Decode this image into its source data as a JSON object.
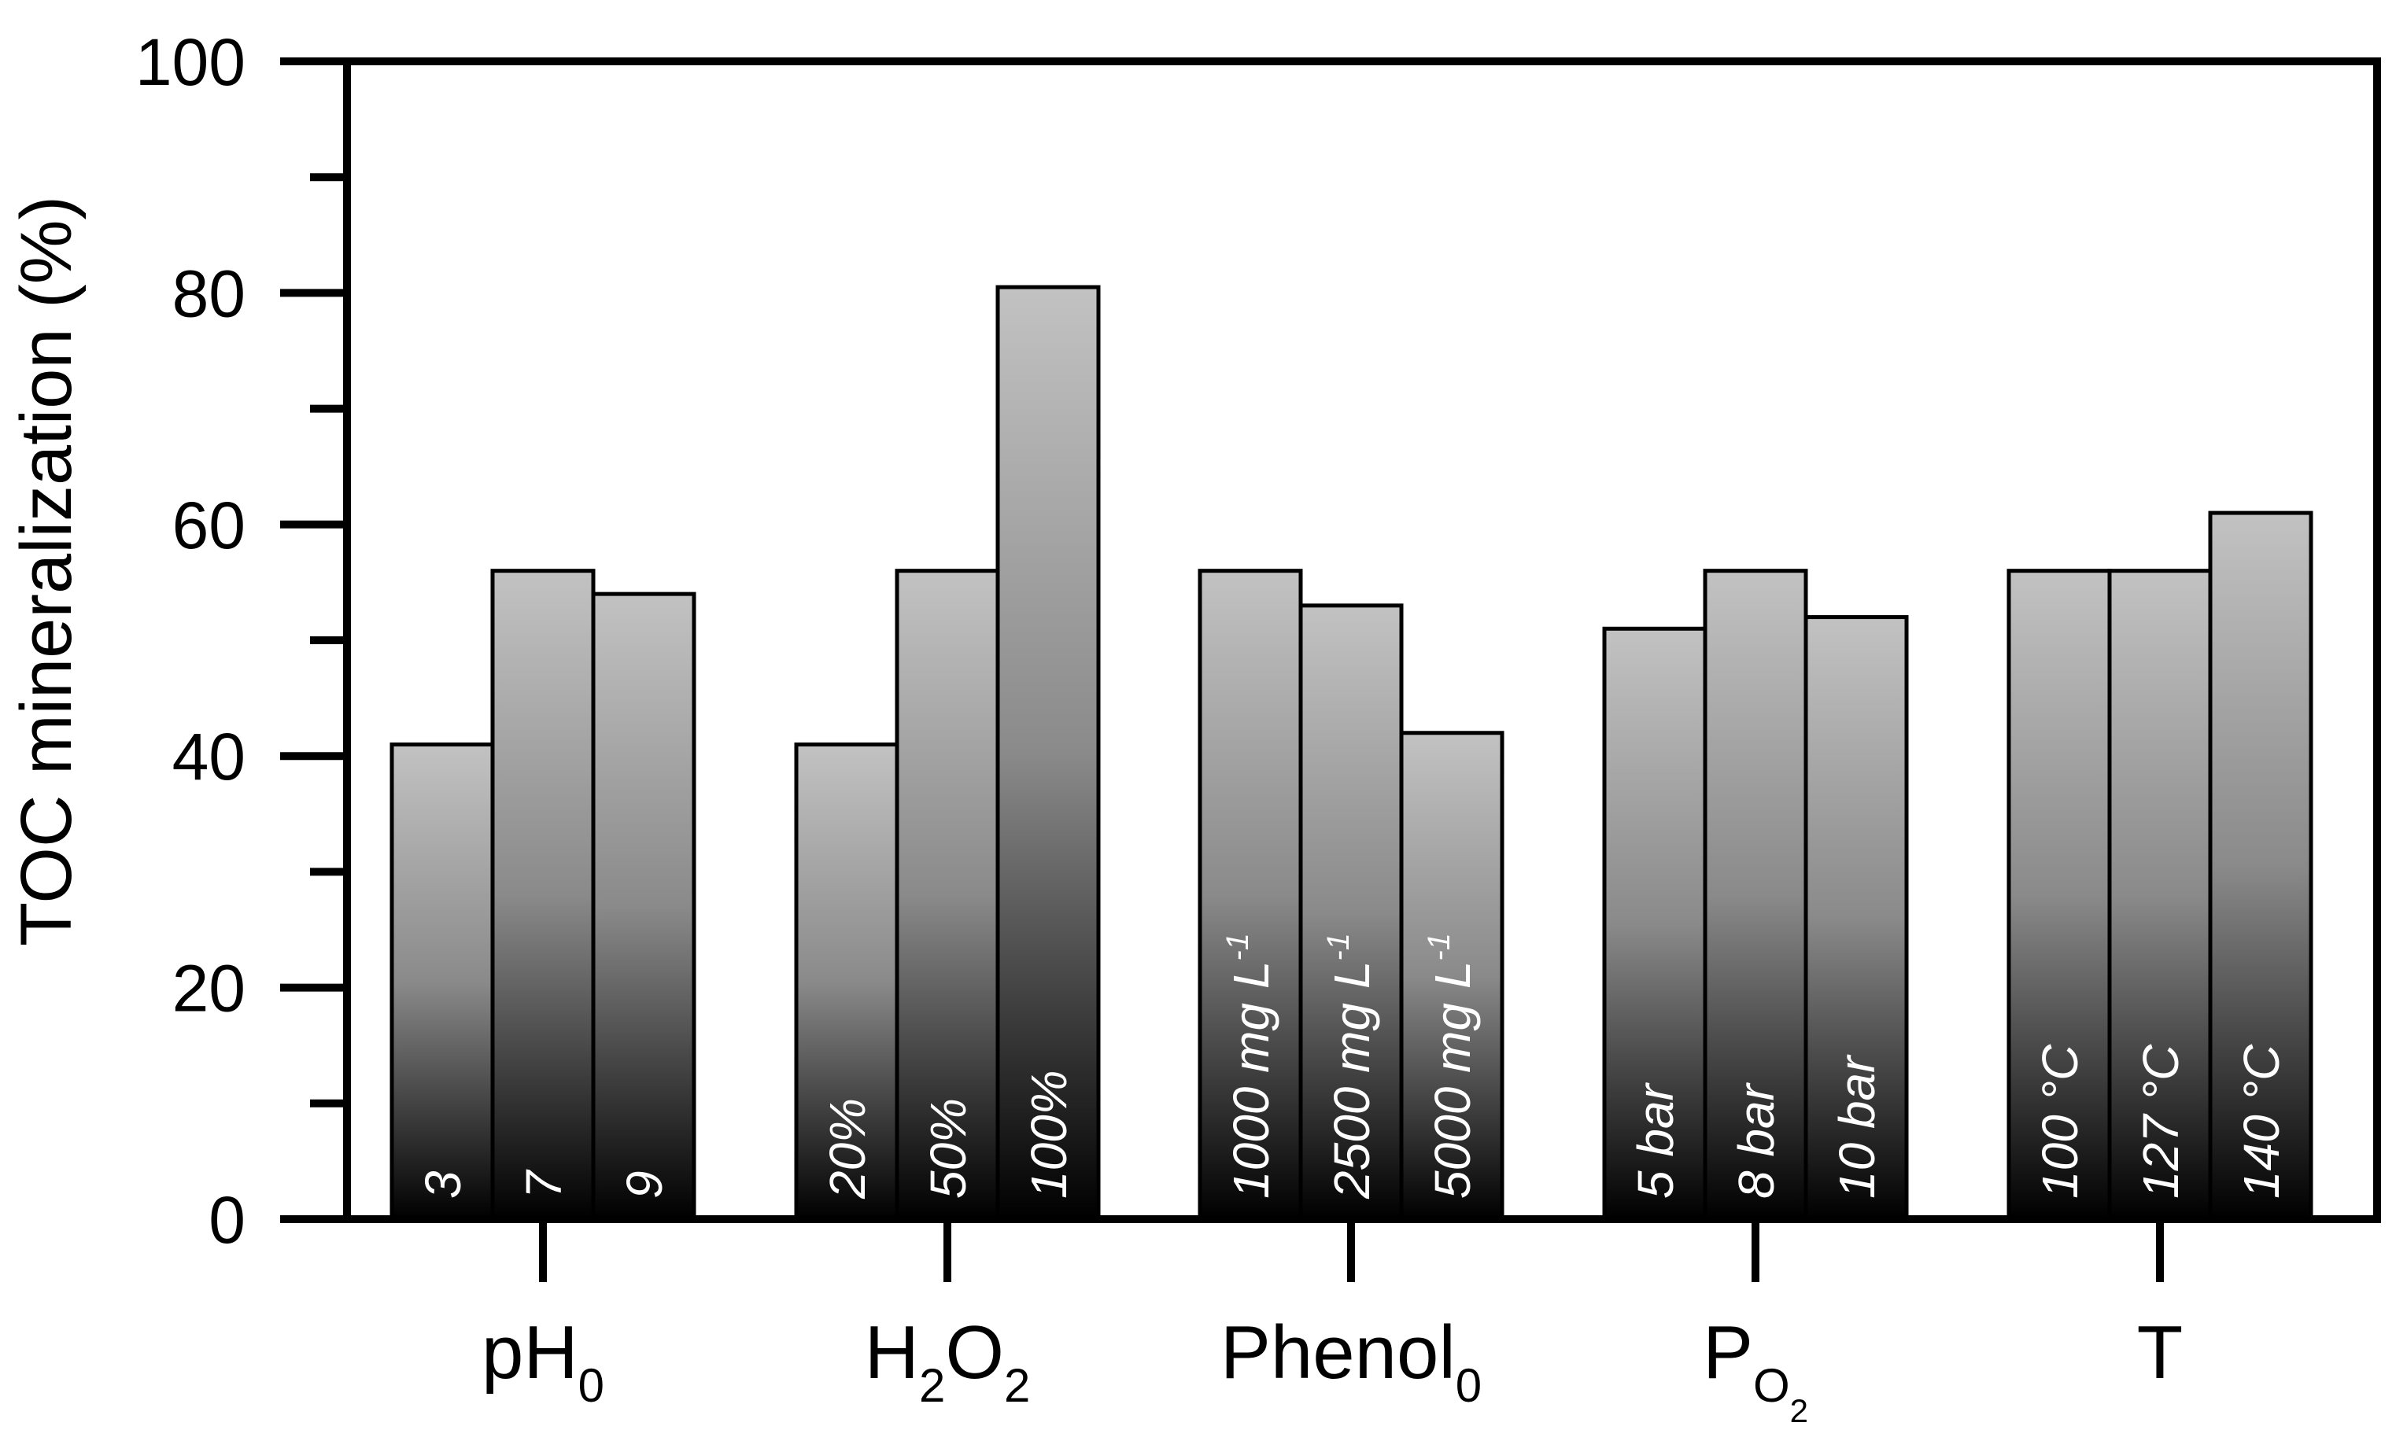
{
  "chart_data": {
    "type": "bar",
    "title": "",
    "ylabel": "TOC mineralization (%)",
    "xlabel": "",
    "ylim": [
      0,
      100
    ],
    "yticks": [
      "0",
      "20",
      "40",
      "60",
      "80",
      "100"
    ],
    "groups": [
      {
        "name": "pH",
        "subscript": "0",
        "bars": [
          {
            "label": "3",
            "value": 41
          },
          {
            "label": "7",
            "value": 56
          },
          {
            "label": "9",
            "value": 54
          }
        ]
      },
      {
        "name": "H",
        "subscript": "2",
        "name2": "O",
        "subscript2": "2",
        "bars": [
          {
            "label": "20%",
            "value": 41
          },
          {
            "label": "50%",
            "value": 56
          },
          {
            "label": "100%",
            "value": 80.5
          }
        ]
      },
      {
        "name": "Phenol",
        "subscript": "0",
        "bars": [
          {
            "label": "1000 mg L",
            "sup": "-1",
            "value": 56
          },
          {
            "label": "2500 mg L",
            "sup": "-1",
            "value": 53
          },
          {
            "label": "5000 mg L",
            "sup": "-1",
            "value": 42
          }
        ]
      },
      {
        "name": "P",
        "subscript": "O",
        "subsubscript": "2",
        "bars": [
          {
            "label": "5 bar",
            "value": 51
          },
          {
            "label": "8 bar",
            "value": 56
          },
          {
            "label": "10 bar",
            "value": 52
          }
        ]
      },
      {
        "name": "T",
        "bars": [
          {
            "label": "100 °C",
            "value": 56
          },
          {
            "label": "127 °C",
            "value": 56
          },
          {
            "label": "140 °C",
            "value": 61
          }
        ]
      }
    ],
    "colors": {
      "bar_top": "#c2c2c2",
      "bar_mid": "#8a8a8a",
      "bar_bottom": "#000000",
      "axis": "#000000",
      "bar_text": "#ffffff"
    }
  }
}
